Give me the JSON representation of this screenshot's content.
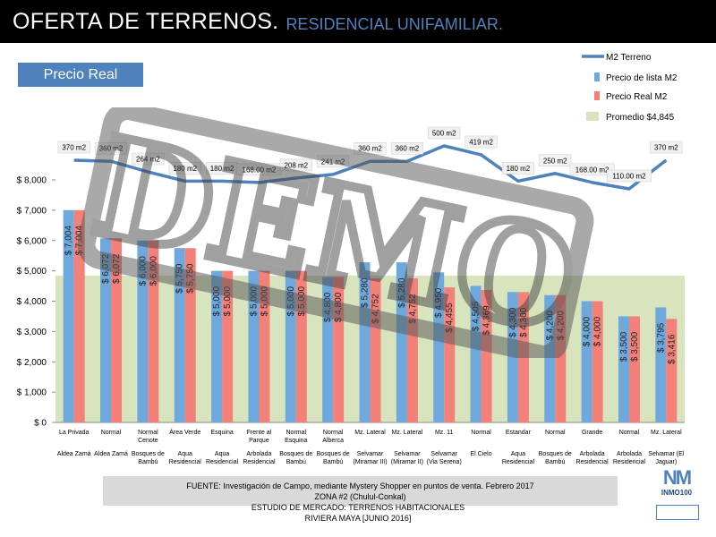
{
  "header": {
    "title": "OFERTA DE TERRENOS.",
    "subtitle": "RESIDENCIAL UNIFAMILIAR."
  },
  "badge": {
    "label": "Precio Real"
  },
  "source": {
    "line1": "FUENTE: Investigación de Campo, mediante  Mystery Shopper en puntos de venta. Febrero 2017",
    "line2": "ZONA #2 (Chulul-Conkal)"
  },
  "footer": {
    "line1": "ESTUDIO DE MERCADO: TERRENOS HABITACIONALES",
    "line2": "RIVIERA MAYA [JUNIO 2016]"
  },
  "logo": {
    "mark": "NM",
    "text": "INMO100"
  },
  "watermark": {
    "text": "DEMO"
  },
  "colors": {
    "lista": "#6fa8dc",
    "real": "#f4807a",
    "line": "#4f81bd",
    "promedio": "#d7e4bd",
    "header_bg": "#000000",
    "accent": "#4f81bd"
  },
  "chart_data": {
    "type": "bar",
    "ylim": [
      0,
      8000
    ],
    "yticks": [
      "$ 0",
      "$ 1,000",
      "$ 2,000",
      "$ 3,000",
      "$ 4,000",
      "$ 5,000",
      "$ 6,000",
      "$ 7,000",
      "$ 8,000"
    ],
    "legend": [
      {
        "label": "M2 Terreno",
        "kind": "line"
      },
      {
        "label": "Precio de lista M2",
        "kind": "lista"
      },
      {
        "label": "Precio Real M2",
        "kind": "real"
      },
      {
        "label": "Promedio $4,845",
        "kind": "promedio"
      }
    ],
    "promedio": 4845,
    "categories": [
      {
        "top": "La Privada",
        "bottom": "Aldea Zamá"
      },
      {
        "top": "Normal",
        "bottom": "Aldea Zamá"
      },
      {
        "top": "Normal\nCenote",
        "bottom": "Bosques de\nBambú"
      },
      {
        "top": "Área Verde",
        "bottom": "Aqua\nResidencial"
      },
      {
        "top": "Esquina",
        "bottom": "Aqua\nResidencial"
      },
      {
        "top": "Frente al\nParque",
        "bottom": "Arbolada\nResidencial"
      },
      {
        "top": "Normal\nEsquina",
        "bottom": "Bosques de\nBambú"
      },
      {
        "top": "Normal\nAlberca",
        "bottom": "Bosques de\nBambú"
      },
      {
        "top": "Mz. Lateral",
        "bottom": "Selvamar\n(Miramar III)"
      },
      {
        "top": "Mz. Lateral",
        "bottom": "Selvamar\n(Miramar II)"
      },
      {
        "top": "Mz. 11",
        "bottom": "Selvamar\n(Via Serena)"
      },
      {
        "top": "Normal",
        "bottom": "El Cielo"
      },
      {
        "top": "Estandar",
        "bottom": "Aqua\nResidencial"
      },
      {
        "top": "Normal",
        "bottom": "Bosques de\nBambú"
      },
      {
        "top": "Grande",
        "bottom": "Arbolada\nResidencial"
      },
      {
        "top": "Normal",
        "bottom": "Arbolada\nResidencial"
      },
      {
        "top": "Mz. Lateral",
        "bottom": "Selvamar (El\nJaguar)"
      }
    ],
    "series": [
      {
        "name": "Precio de lista M2",
        "values": [
          7004,
          6072,
          6000,
          5750,
          5000,
          5000,
          5000,
          4800,
          5280,
          5280,
          4950,
          4505,
          4300,
          4200,
          4000,
          3500,
          3795
        ],
        "labels": [
          "$ 7,004",
          "$ 6,072",
          "$ 6,000",
          "$ 5,750",
          "$ 5,000",
          "$ 5,000",
          "$ 5,000",
          "$ 4,800",
          "$ 5,280",
          "$ 5,280",
          "$ 4,950",
          "$ 4,505",
          "$ 4,300",
          "$ 4,200",
          "$ 4,000",
          "$ 3,500",
          "$ 3,795"
        ]
      },
      {
        "name": "Precio Real M2",
        "values": [
          7004,
          6072,
          6000,
          5750,
          5000,
          5000,
          5000,
          4800,
          4752,
          4752,
          4455,
          4369,
          4300,
          4200,
          4000,
          3500,
          3416
        ],
        "labels": [
          "$ 7,004",
          "$ 6,072",
          "$ 6,000",
          "$ 5,750",
          "$ 5,000",
          "$ 5,000",
          "$ 5,000",
          "$ 4,800",
          "$ 4,752",
          "$ 4,752",
          "$ 4,455",
          "$ 4,369",
          "$ 4,300",
          "$ 4,200",
          "$ 4,000",
          "$ 3,500",
          "$ 3,416"
        ]
      },
      {
        "name": "M2 Terreno",
        "values": [
          370,
          360,
          264,
          180,
          180,
          168,
          208,
          241,
          360,
          360,
          500,
          419,
          180,
          250,
          168,
          110,
          370
        ],
        "labels": [
          "370 m2",
          "360 m2",
          "264 m2",
          "180 m2",
          "180 m2",
          "168.00 m2",
          "208 m2",
          "241 m2",
          "360 m2",
          "360 m2",
          "500 m2",
          "419 m2",
          "180 m2",
          "250 m2",
          "168.00 m2",
          "110.00 m2",
          "370 m2"
        ]
      }
    ]
  }
}
